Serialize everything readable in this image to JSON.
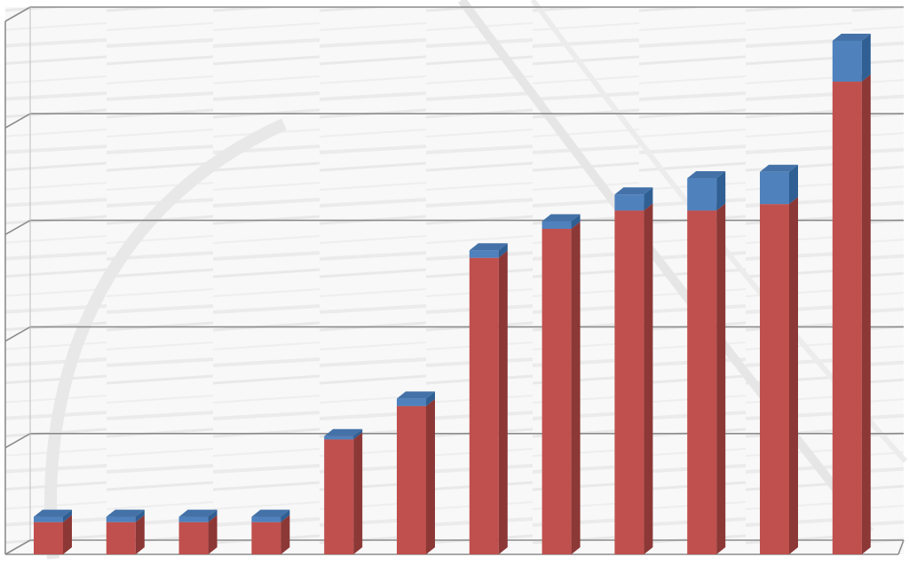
{
  "chart_data": {
    "type": "bar",
    "stacked": true,
    "three_d": true,
    "categories": [
      "",
      "",
      "",
      "",
      "",
      "",
      "",
      "",
      "",
      "",
      "",
      ""
    ],
    "series": [
      {
        "values": [
          0.3,
          0.3,
          0.3,
          0.3,
          1.07,
          1.38,
          2.76,
          3.03,
          3.2,
          3.2,
          3.26,
          4.4
        ]
      },
      {
        "values": [
          0.05,
          0.05,
          0.05,
          0.05,
          0.03,
          0.07,
          0.07,
          0.07,
          0.15,
          0.3,
          0.3,
          0.38
        ]
      }
    ],
    "ylim": [
      0,
      5
    ],
    "grid": true,
    "legend": "none",
    "colors": {
      "series_front": [
        "#c0504d",
        "#4f81bd"
      ],
      "series_side": [
        "#8c3836",
        "#2f5f93"
      ],
      "series_top": [
        "#d4706d",
        "#4472a8"
      ],
      "grid": "#8c8c8c",
      "background": "#f2f2f2"
    }
  }
}
